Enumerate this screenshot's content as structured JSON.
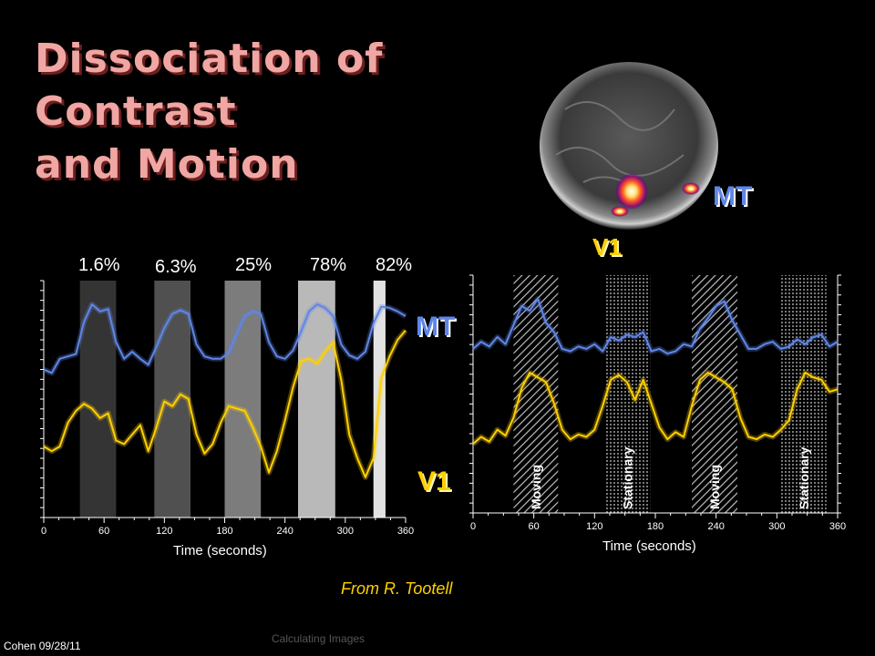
{
  "slide": {
    "title_lines": [
      "Dissociation of",
      "Contrast",
      "and Motion"
    ],
    "credit": "From R. Tootell",
    "footer_left": "Cohen 09/28/11",
    "footer_center": "Calculating Images"
  },
  "brain_labels": {
    "mt": "MT",
    "v1": "V1"
  },
  "colors": {
    "mt": "#5f86e8",
    "v1": "#ffd000",
    "background": "#000000"
  },
  "chart_data": [
    {
      "type": "line",
      "xlabel": "Time (seconds)",
      "xlim": [
        0,
        360
      ],
      "xticks": [
        0,
        60,
        120,
        180,
        240,
        300,
        360
      ],
      "band_labels": [
        "1.6%",
        "6.3%",
        "25%",
        "78%",
        "82%"
      ],
      "bands": [
        {
          "start": 36,
          "end": 72,
          "shade": "#343434"
        },
        {
          "start": 110,
          "end": 146,
          "shade": "#505050"
        },
        {
          "start": 180,
          "end": 216,
          "shade": "#7c7c7c"
        },
        {
          "start": 253,
          "end": 290,
          "shade": "#b9b9b9"
        },
        {
          "start": 328,
          "end": 340,
          "shade": "#e2e2e2"
        }
      ],
      "series_labels": [
        "MT",
        "V1"
      ],
      "series": [
        {
          "name": "MT",
          "color": "#5f86e8",
          "x": [
            0,
            8,
            16,
            24,
            32,
            40,
            48,
            56,
            64,
            72,
            80,
            88,
            96,
            104,
            112,
            120,
            128,
            136,
            144,
            152,
            160,
            168,
            176,
            184,
            192,
            200,
            208,
            216,
            224,
            232,
            240,
            248,
            256,
            264,
            272,
            280,
            288,
            296,
            304,
            312,
            320,
            328,
            336,
            344,
            352,
            360
          ],
          "y": [
            0.25,
            0.22,
            0.34,
            0.36,
            0.38,
            0.65,
            0.8,
            0.74,
            0.76,
            0.48,
            0.34,
            0.4,
            0.34,
            0.29,
            0.44,
            0.6,
            0.72,
            0.75,
            0.72,
            0.46,
            0.36,
            0.34,
            0.34,
            0.39,
            0.55,
            0.7,
            0.74,
            0.72,
            0.48,
            0.36,
            0.34,
            0.41,
            0.57,
            0.74,
            0.8,
            0.77,
            0.7,
            0.46,
            0.37,
            0.34,
            0.4,
            0.64,
            0.78,
            0.77,
            0.74,
            0.7
          ]
        },
        {
          "name": "V1",
          "color": "#ffd000",
          "x": [
            0,
            8,
            16,
            24,
            32,
            40,
            48,
            56,
            64,
            72,
            80,
            88,
            96,
            104,
            112,
            120,
            128,
            136,
            144,
            152,
            160,
            168,
            176,
            184,
            192,
            200,
            208,
            216,
            224,
            232,
            240,
            248,
            256,
            264,
            272,
            280,
            288,
            296,
            304,
            312,
            320,
            328,
            336,
            344,
            352,
            360
          ],
          "y": [
            -0.4,
            -0.44,
            -0.4,
            -0.2,
            -0.1,
            -0.04,
            -0.08,
            -0.16,
            -0.12,
            -0.35,
            -0.38,
            -0.3,
            -0.22,
            -0.44,
            -0.24,
            -0.02,
            -0.06,
            0.04,
            0.0,
            -0.3,
            -0.46,
            -0.38,
            -0.2,
            -0.06,
            -0.08,
            -0.1,
            -0.24,
            -0.4,
            -0.62,
            -0.44,
            -0.18,
            0.1,
            0.32,
            0.34,
            0.3,
            0.4,
            0.48,
            0.16,
            -0.3,
            -0.5,
            -0.66,
            -0.5,
            0.18,
            0.36,
            0.5,
            0.58
          ]
        }
      ]
    },
    {
      "type": "line",
      "xlabel": "Time (seconds)",
      "xlim": [
        0,
        360
      ],
      "xticks": [
        0,
        60,
        120,
        180,
        240,
        300,
        360
      ],
      "bands": [
        {
          "start": 40,
          "end": 84,
          "label": "Moving",
          "pattern": "hatch"
        },
        {
          "start": 130,
          "end": 175,
          "label": "Stationary",
          "pattern": "dots"
        },
        {
          "start": 216,
          "end": 261,
          "label": "Moving",
          "pattern": "hatch"
        },
        {
          "start": 304,
          "end": 349,
          "label": "Stationary",
          "pattern": "dots"
        }
      ],
      "series": [
        {
          "name": "MT",
          "color": "#5f86e8",
          "x": [
            0,
            8,
            16,
            24,
            32,
            40,
            48,
            56,
            64,
            72,
            80,
            88,
            96,
            104,
            112,
            120,
            128,
            136,
            144,
            152,
            160,
            168,
            176,
            184,
            192,
            200,
            208,
            216,
            224,
            232,
            240,
            248,
            256,
            264,
            272,
            280,
            288,
            296,
            304,
            312,
            320,
            328,
            336,
            344,
            352,
            360
          ],
          "y": [
            0.38,
            0.44,
            0.4,
            0.48,
            0.42,
            0.58,
            0.74,
            0.7,
            0.8,
            0.6,
            0.52,
            0.38,
            0.36,
            0.4,
            0.38,
            0.42,
            0.36,
            0.48,
            0.45,
            0.5,
            0.48,
            0.52,
            0.36,
            0.38,
            0.34,
            0.36,
            0.42,
            0.4,
            0.55,
            0.64,
            0.74,
            0.78,
            0.62,
            0.5,
            0.38,
            0.38,
            0.42,
            0.44,
            0.38,
            0.4,
            0.46,
            0.42,
            0.48,
            0.5,
            0.4,
            0.44
          ]
        },
        {
          "name": "V1",
          "color": "#ffd000",
          "x": [
            0,
            8,
            16,
            24,
            32,
            40,
            48,
            56,
            64,
            72,
            80,
            88,
            96,
            104,
            112,
            120,
            128,
            136,
            144,
            152,
            160,
            168,
            176,
            184,
            192,
            200,
            208,
            216,
            224,
            232,
            240,
            248,
            256,
            264,
            272,
            280,
            288,
            296,
            304,
            312,
            320,
            328,
            336,
            344,
            352,
            360
          ],
          "y": [
            -0.42,
            -0.36,
            -0.4,
            -0.3,
            -0.35,
            -0.2,
            0.05,
            0.18,
            0.14,
            0.1,
            -0.08,
            -0.3,
            -0.38,
            -0.34,
            -0.36,
            -0.3,
            -0.1,
            0.12,
            0.16,
            0.1,
            -0.05,
            0.12,
            -0.08,
            -0.28,
            -0.38,
            -0.32,
            -0.36,
            -0.1,
            0.12,
            0.18,
            0.14,
            0.1,
            0.04,
            -0.2,
            -0.36,
            -0.38,
            -0.34,
            -0.36,
            -0.3,
            -0.22,
            0.04,
            0.18,
            0.14,
            0.12,
            0.02,
            0.04
          ]
        }
      ]
    }
  ]
}
